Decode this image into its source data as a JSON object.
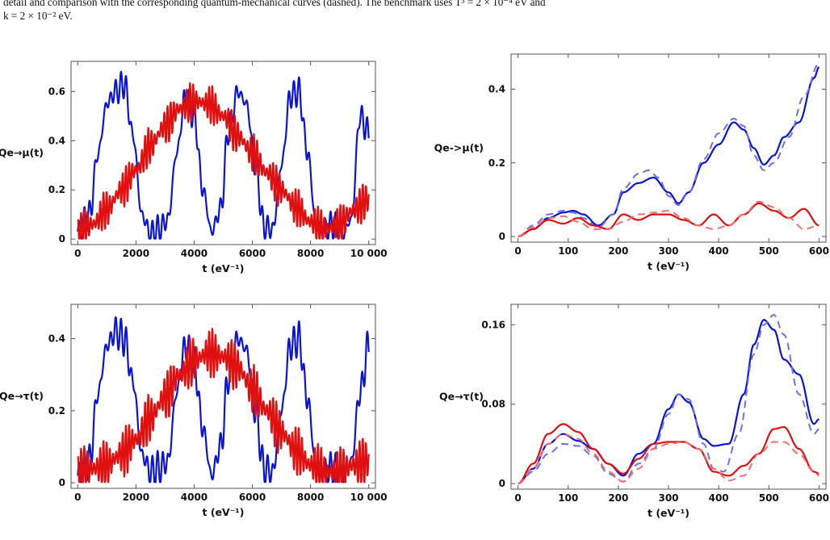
{
  "caption": {
    "line1": "detail and comparison with the corresponding quantum-mechanical curves (dashed). The benchmark uses T³ = 2 × 10⁻⁴ eV and",
    "line2": "k = 2 × 10⁻² eV."
  },
  "colors": {
    "blue": "#0a14d6",
    "red": "#e01010",
    "blue_dashed": "#6e6ee6",
    "red_dashed": "#ee7070"
  },
  "chart_data": [
    {
      "type": "line",
      "position": "top-left",
      "xlabel": "t (eV⁻¹)",
      "ylabel": "Qe→μ(t)",
      "xlim": [
        0,
        10000
      ],
      "ylim": [
        0,
        0.7
      ],
      "xticks": [
        0,
        2000,
        4000,
        6000,
        8000,
        10000
      ],
      "xtick_labels": [
        "0",
        "2000",
        "4000",
        "6000",
        "8000",
        "10 000"
      ],
      "yticks": [
        0,
        0.2,
        0.4,
        0.6
      ],
      "ytick_labels": [
        "0",
        "0.2",
        "0.4",
        "0.6"
      ],
      "series": [
        {
          "color": "blue",
          "style": "solid",
          "x": [
            0,
            400,
            700,
            1000,
            1300,
            1600,
            1900,
            2200,
            2500,
            2800,
            3100,
            3400,
            3700,
            4000,
            4300,
            4600,
            4900,
            5200,
            5500,
            5800,
            6100,
            6400,
            6700,
            7000,
            7300,
            7600,
            7900,
            8200,
            8500,
            8800,
            9100,
            9400,
            9700,
            10000
          ],
          "y": [
            0.03,
            0.1,
            0.35,
            0.55,
            0.6,
            0.63,
            0.42,
            0.1,
            0.02,
            0.04,
            0.08,
            0.35,
            0.58,
            0.5,
            0.2,
            0.03,
            0.12,
            0.45,
            0.6,
            0.55,
            0.3,
            0.05,
            0.04,
            0.3,
            0.58,
            0.6,
            0.35,
            0.05,
            0.04,
            0.06,
            0.02,
            0.08,
            0.5,
            0.43
          ],
          "osc_amp": 0.06,
          "osc_period": 180
        },
        {
          "color": "red",
          "style": "solid",
          "x": [
            0,
            500,
            1000,
            1500,
            2000,
            2500,
            3000,
            3500,
            4000,
            4500,
            5000,
            5500,
            6000,
            6500,
            7000,
            7500,
            8000,
            8500,
            9000,
            9500,
            10000
          ],
          "y": [
            0.03,
            0.06,
            0.12,
            0.2,
            0.28,
            0.38,
            0.46,
            0.53,
            0.56,
            0.55,
            0.5,
            0.42,
            0.35,
            0.27,
            0.2,
            0.13,
            0.07,
            0.04,
            0.06,
            0.12,
            0.16
          ],
          "osc_amp": 0.08,
          "osc_period": 110
        }
      ]
    },
    {
      "type": "line",
      "position": "top-right",
      "xlabel": "t (eV⁻¹)",
      "ylabel": "Qe->μ(t)",
      "xlim": [
        0,
        600
      ],
      "ylim": [
        0,
        0.48
      ],
      "xticks": [
        0,
        100,
        200,
        300,
        400,
        500,
        600
      ],
      "xtick_labels": [
        "0",
        "100",
        "200",
        "300",
        "400",
        "500",
        "600"
      ],
      "yticks": [
        0,
        0.2,
        0.4
      ],
      "ytick_labels": [
        "0",
        "0.2",
        "0.4"
      ],
      "series": [
        {
          "color": "blue",
          "style": "solid",
          "x": [
            0,
            30,
            60,
            90,
            110,
            130,
            160,
            190,
            210,
            240,
            270,
            300,
            320,
            340,
            370,
            400,
            430,
            450,
            470,
            490,
            510,
            530,
            560,
            590,
            600
          ],
          "y": [
            0,
            0.02,
            0.05,
            0.065,
            0.07,
            0.06,
            0.03,
            0.06,
            0.12,
            0.145,
            0.16,
            0.12,
            0.09,
            0.12,
            0.2,
            0.25,
            0.31,
            0.29,
            0.24,
            0.195,
            0.22,
            0.27,
            0.31,
            0.43,
            0.46
          ]
        },
        {
          "color": "blue",
          "style": "dashed",
          "x": [
            0,
            30,
            60,
            90,
            110,
            130,
            160,
            190,
            210,
            240,
            260,
            280,
            300,
            320,
            340,
            370,
            400,
            430,
            450,
            470,
            490,
            510,
            540,
            570,
            600
          ],
          "y": [
            0,
            0.03,
            0.06,
            0.07,
            0.065,
            0.05,
            0.025,
            0.06,
            0.13,
            0.17,
            0.18,
            0.16,
            0.11,
            0.085,
            0.12,
            0.21,
            0.28,
            0.32,
            0.3,
            0.22,
            0.18,
            0.2,
            0.27,
            0.38,
            0.47
          ]
        },
        {
          "color": "red",
          "style": "solid",
          "x": [
            0,
            30,
            60,
            90,
            120,
            150,
            180,
            210,
            240,
            270,
            300,
            330,
            360,
            390,
            420,
            450,
            480,
            510,
            540,
            570,
            600
          ],
          "y": [
            0,
            0.02,
            0.045,
            0.035,
            0.05,
            0.03,
            0.02,
            0.06,
            0.045,
            0.06,
            0.06,
            0.045,
            0.03,
            0.06,
            0.03,
            0.06,
            0.09,
            0.07,
            0.05,
            0.075,
            0.03
          ]
        },
        {
          "color": "red",
          "style": "dashed",
          "x": [
            0,
            30,
            60,
            90,
            120,
            150,
            180,
            210,
            240,
            270,
            300,
            330,
            360,
            390,
            420,
            450,
            480,
            510,
            540,
            570,
            600
          ],
          "y": [
            0,
            0.025,
            0.05,
            0.055,
            0.04,
            0.02,
            0.02,
            0.04,
            0.06,
            0.065,
            0.07,
            0.05,
            0.03,
            0.02,
            0.03,
            0.06,
            0.095,
            0.08,
            0.05,
            0.02,
            0.03
          ]
        }
      ]
    },
    {
      "type": "line",
      "position": "bottom-left",
      "xlabel": "t (eV⁻¹)",
      "ylabel": "Qe→τ(t)",
      "xlim": [
        0,
        10000
      ],
      "ylim": [
        0,
        0.48
      ],
      "xticks": [
        0,
        2000,
        4000,
        6000,
        8000,
        10000
      ],
      "xtick_labels": [
        "0",
        "2000",
        "4000",
        "6000",
        "8000",
        "10 000"
      ],
      "yticks": [
        0,
        0.2,
        0.4
      ],
      "ytick_labels": [
        "0",
        "0.2",
        "0.4"
      ],
      "series": [
        {
          "color": "blue",
          "style": "solid",
          "x": [
            0,
            400,
            700,
            1000,
            1300,
            1600,
            1900,
            2200,
            2500,
            2800,
            3100,
            3400,
            3700,
            4000,
            4300,
            4600,
            4900,
            5200,
            5500,
            5800,
            6100,
            6400,
            6700,
            7000,
            7300,
            7600,
            7900,
            8200,
            8500,
            8800,
            9100,
            9400,
            9700,
            10000
          ],
          "y": [
            0.02,
            0.06,
            0.25,
            0.38,
            0.42,
            0.4,
            0.28,
            0.08,
            0.03,
            0.04,
            0.06,
            0.25,
            0.38,
            0.33,
            0.15,
            0.02,
            0.1,
            0.3,
            0.4,
            0.37,
            0.2,
            0.04,
            0.03,
            0.2,
            0.38,
            0.4,
            0.23,
            0.04,
            0.03,
            0.04,
            0.02,
            0.06,
            0.25,
            0.38
          ],
          "osc_amp": 0.05,
          "osc_period": 180
        },
        {
          "color": "red",
          "style": "solid",
          "x": [
            0,
            500,
            1000,
            1500,
            2000,
            2500,
            3000,
            3500,
            4000,
            4500,
            5000,
            5500,
            6000,
            6500,
            7000,
            7500,
            8000,
            8500,
            9000,
            9500,
            10000
          ],
          "y": [
            0.03,
            0.04,
            0.05,
            0.08,
            0.12,
            0.18,
            0.24,
            0.3,
            0.34,
            0.36,
            0.35,
            0.32,
            0.26,
            0.2,
            0.14,
            0.09,
            0.05,
            0.03,
            0.03,
            0.05,
            0.06
          ],
          "osc_amp": 0.07,
          "osc_period": 110
        }
      ]
    },
    {
      "type": "line",
      "position": "bottom-right",
      "xlabel": "t (eV⁻¹)",
      "ylabel": "Qe→τ(t)",
      "xlim": [
        0,
        600
      ],
      "ylim": [
        0,
        0.175
      ],
      "xticks": [
        0,
        100,
        200,
        300,
        400,
        500,
        600
      ],
      "xtick_labels": [
        "0",
        "100",
        "200",
        "300",
        "400",
        "500",
        "600"
      ],
      "yticks": [
        0,
        0.08,
        0.16
      ],
      "ytick_labels": [
        "0",
        "0.08",
        "0.16"
      ],
      "series": [
        {
          "color": "blue",
          "style": "solid",
          "x": [
            0,
            30,
            60,
            90,
            120,
            150,
            180,
            210,
            240,
            270,
            300,
            320,
            340,
            370,
            390,
            420,
            450,
            470,
            490,
            510,
            530,
            560,
            590,
            600
          ],
          "y": [
            0,
            0.015,
            0.04,
            0.05,
            0.043,
            0.035,
            0.02,
            0.008,
            0.03,
            0.04,
            0.075,
            0.09,
            0.082,
            0.045,
            0.038,
            0.04,
            0.09,
            0.14,
            0.165,
            0.155,
            0.125,
            0.11,
            0.06,
            0.065
          ]
        },
        {
          "color": "blue",
          "style": "dashed",
          "x": [
            0,
            30,
            60,
            90,
            120,
            150,
            180,
            210,
            240,
            270,
            300,
            320,
            340,
            370,
            390,
            410,
            440,
            470,
            490,
            510,
            530,
            560,
            590,
            600
          ],
          "y": [
            0,
            0.012,
            0.03,
            0.04,
            0.038,
            0.028,
            0.01,
            0.002,
            0.02,
            0.035,
            0.07,
            0.09,
            0.085,
            0.04,
            0.015,
            0.012,
            0.05,
            0.13,
            0.16,
            0.17,
            0.15,
            0.09,
            0.05,
            0.055
          ]
        },
        {
          "color": "red",
          "style": "solid",
          "x": [
            0,
            30,
            60,
            90,
            120,
            150,
            180,
            210,
            240,
            270,
            300,
            330,
            360,
            390,
            420,
            450,
            480,
            510,
            530,
            560,
            590,
            600
          ],
          "y": [
            0,
            0.02,
            0.05,
            0.06,
            0.052,
            0.035,
            0.02,
            0.01,
            0.025,
            0.04,
            0.042,
            0.042,
            0.035,
            0.012,
            0.008,
            0.018,
            0.03,
            0.055,
            0.057,
            0.035,
            0.012,
            0.01
          ]
        },
        {
          "color": "red",
          "style": "dashed",
          "x": [
            0,
            30,
            60,
            90,
            120,
            150,
            180,
            210,
            240,
            270,
            300,
            330,
            360,
            390,
            420,
            450,
            480,
            510,
            530,
            560,
            590,
            600
          ],
          "y": [
            0,
            0.015,
            0.04,
            0.05,
            0.045,
            0.03,
            0.012,
            0.002,
            0.015,
            0.035,
            0.04,
            0.042,
            0.035,
            0.015,
            0.003,
            0.008,
            0.03,
            0.042,
            0.042,
            0.03,
            0.012,
            0.008
          ]
        }
      ]
    }
  ]
}
